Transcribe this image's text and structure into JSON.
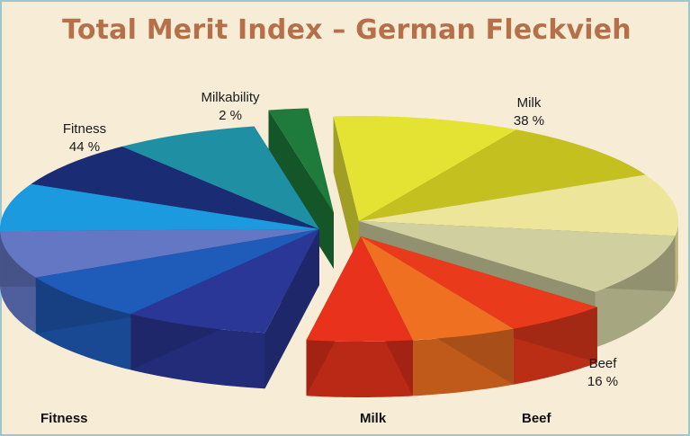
{
  "title": "Total Merit Index – German Fleckvieh",
  "chart_data": {
    "type": "pie",
    "title": "Total Merit Index – German Fleckvieh",
    "slices": [
      {
        "label": "Milk",
        "value": 38,
        "display": "38 %",
        "color": "#e0e030"
      },
      {
        "label": "Beef",
        "value": 16,
        "display": "16 %",
        "color": "#e8321c"
      },
      {
        "label": "Fitness",
        "value": 44,
        "display": "44 %",
        "color": "#2a3a9a"
      },
      {
        "label": "Milkability",
        "value": 2,
        "display": "2 %",
        "color": "#1f7a3a"
      }
    ],
    "bottom_labels": [
      "Fitness",
      "Milk",
      "Beef"
    ]
  }
}
